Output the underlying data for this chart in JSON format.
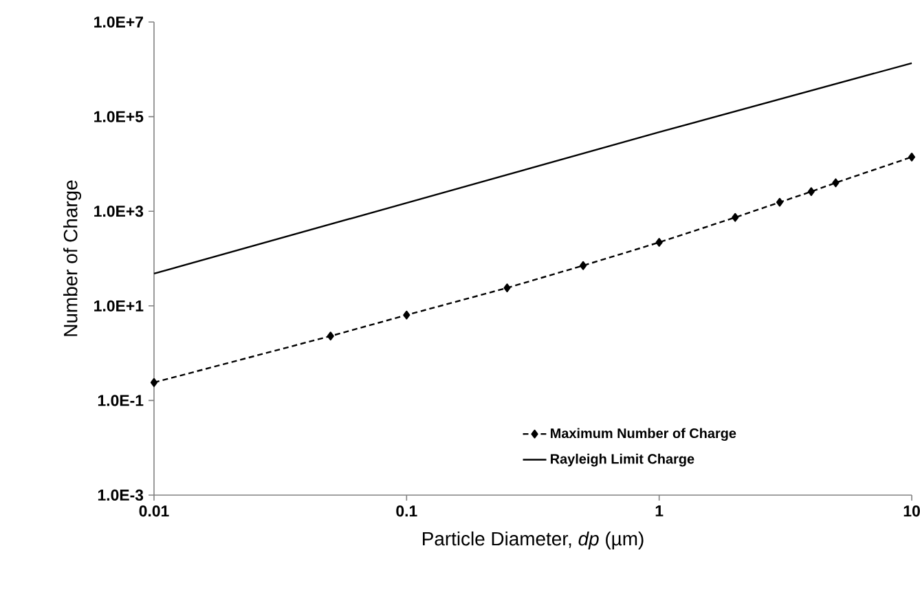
{
  "chart_data": {
    "type": "line",
    "xlabel": "Particle Diameter, *dp* (µm)",
    "ylabel": "Number of Charge",
    "log": "xy",
    "xlim": [
      0.01,
      10
    ],
    "xticks": [
      0.01,
      0.1,
      1,
      10
    ],
    "ylim": [
      0.001,
      10000000
    ],
    "yticks": [
      {
        "value": 0.001,
        "label": "1.0E-3"
      },
      {
        "value": 0.1,
        "label": "1.0E-1"
      },
      {
        "value": 10,
        "label": "1.0E+1"
      },
      {
        "value": 1000,
        "label": "1.0E+3"
      },
      {
        "value": 100000,
        "label": "1.0E+5"
      },
      {
        "value": 10000000,
        "label": "1.0E+7"
      }
    ],
    "grid": false,
    "legend": "bottom right",
    "series": [
      {
        "name": "Maximum Number of Charge",
        "color": "#000000",
        "marker": "diamond",
        "line_style": "dashed",
        "x": [
          0.01,
          0.05,
          0.1,
          0.25,
          0.5,
          1,
          2,
          3,
          4,
          5,
          10
        ],
        "values": [
          0.24,
          2.3,
          6.4,
          24,
          71,
          220,
          740,
          1550,
          2600,
          4000,
          14000
        ]
      },
      {
        "name": "Rayleigh Limit Charge",
        "color": "#000000",
        "marker": "none",
        "line_style": "solid",
        "x": [
          0.01,
          0.1,
          1,
          10
        ],
        "values": [
          48,
          1500,
          47000,
          1350000
        ]
      }
    ]
  }
}
